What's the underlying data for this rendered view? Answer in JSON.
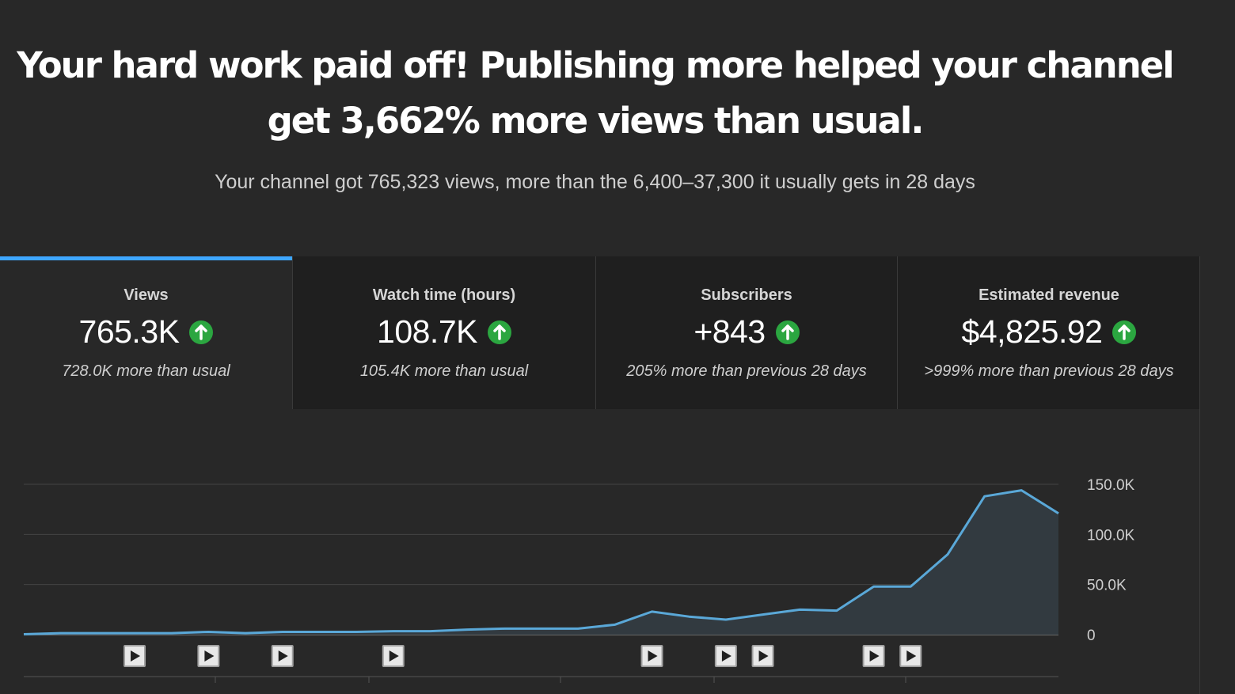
{
  "headline": {
    "line1": "Your hard work paid off! Publishing more helped your channel",
    "line2": "get 3,662% more views than usual."
  },
  "subline": "Your channel got 765,323 views, more than the 6,400–37,300 it usually gets in 28 days",
  "accent_color": "#3ea6ff",
  "up_color": "#2ba640",
  "cards": [
    {
      "label": "Views",
      "value": "765.3K",
      "note": "728.0K more than usual",
      "icon": "arrow-up-icon",
      "active": true
    },
    {
      "label": "Watch time (hours)",
      "value": "108.7K",
      "note": "105.4K more than usual",
      "icon": "arrow-up-icon",
      "active": false
    },
    {
      "label": "Subscribers",
      "value": "+843",
      "note": "205% more than previous 28 days",
      "icon": "arrow-up-icon",
      "active": false
    },
    {
      "label": "Estimated revenue",
      "value": "$4,825.92",
      "note": ">999% more than previous 28 days",
      "icon": "arrow-up-icon",
      "active": false
    }
  ],
  "chart_data": {
    "type": "area",
    "series": [
      {
        "values": [
          400,
          1500,
          1500,
          1500,
          1500,
          2800,
          1500,
          2800,
          2800,
          2800,
          3500,
          3500,
          5000,
          6000,
          6000,
          6000,
          10000,
          23000,
          18000,
          15000,
          20000,
          25000,
          24000,
          48000,
          48000,
          80000,
          138000,
          144000,
          121000
        ]
      }
    ],
    "y_ticks": [
      "0",
      "50.0K",
      "100.0K",
      "150.0K"
    ],
    "y_tick_values": [
      0,
      50000,
      100000,
      150000
    ],
    "ylim": [
      0,
      150000
    ],
    "grid": true,
    "y_axis_position": "right",
    "line_color": "#5aa8d8",
    "fill_color": "#323a40",
    "video_markers": [
      3,
      5,
      7,
      10,
      17,
      19,
      20,
      23,
      24
    ],
    "x_ticks_partial": "cut off at bottom edge"
  }
}
